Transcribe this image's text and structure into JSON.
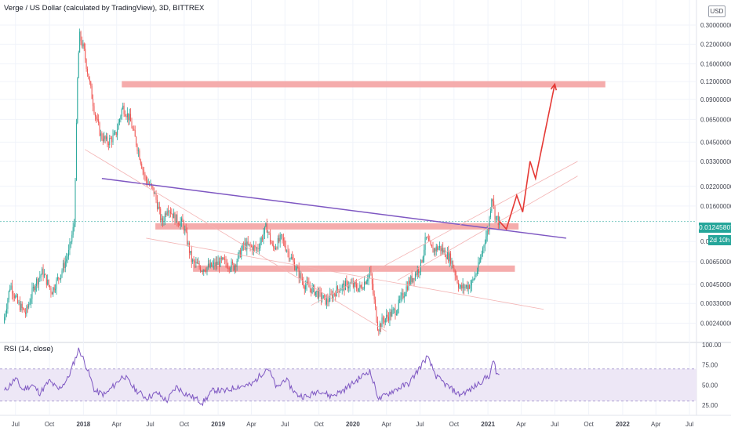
{
  "header": {
    "title": "Verge / US Dollar (calculated by TradingView), 3D, BITTREX",
    "currency_badge": "USD"
  },
  "price_tags": {
    "last_price": "0.01245807",
    "countdown": "2d 10h"
  },
  "rsi_panel": {
    "title": "RSI (14, close)"
  },
  "colors": {
    "up_candle": "#26a69a",
    "down_candle": "#ef5350",
    "resistance_zone": "#f4a3a3",
    "trendline": "#7e57c2",
    "projection_arrow": "#e53935",
    "rsi_line": "#7e57c2",
    "rsi_band": "#ede7f6"
  },
  "chart_data": [
    {
      "type": "candlestick",
      "symbol": "Verge / US Dollar",
      "interval": "3D",
      "exchange": "BITTREX",
      "y_scale": "log",
      "ylim": [
        0.0018,
        0.45
      ],
      "y_ticks": [
        "0.30000000",
        "0.22000000",
        "0.16000000",
        "0.12000000",
        "0.09000000",
        "0.06500000",
        "0.04500000",
        "0.03300000",
        "0.02200000",
        "0.01600000",
        "0.00900000",
        "0.00650000",
        "0.00450000",
        "0.00330000",
        "0.00240000"
      ],
      "x_ticks": [
        "Jul",
        "Oct",
        "2018",
        "Apr",
        "Jul",
        "Oct",
        "2019",
        "Apr",
        "Jul",
        "Oct",
        "2020",
        "Apr",
        "Jul",
        "Oct",
        "2021",
        "Apr",
        "Jul",
        "Oct",
        "2022",
        "Apr",
        "Jul"
      ],
      "last_price": 0.01245807,
      "price_path": [
        [
          "2017-06-01",
          0.0024
        ],
        [
          "2017-06-20",
          0.0045
        ],
        [
          "2017-07-10",
          0.0033
        ],
        [
          "2017-08-01",
          0.0028
        ],
        [
          "2017-08-25",
          0.0045
        ],
        [
          "2017-09-15",
          0.0055
        ],
        [
          "2017-10-10",
          0.004
        ],
        [
          "2017-11-05",
          0.0055
        ],
        [
          "2017-11-25",
          0.0075
        ],
        [
          "2017-12-10",
          0.012
        ],
        [
          "2017-12-20",
          0.16
        ],
        [
          "2017-12-25",
          0.25
        ],
        [
          "2018-01-05",
          0.2
        ],
        [
          "2018-01-20",
          0.12
        ],
        [
          "2018-02-05",
          0.07
        ],
        [
          "2018-02-20",
          0.05
        ],
        [
          "2018-03-10",
          0.045
        ],
        [
          "2018-04-01",
          0.05
        ],
        [
          "2018-04-20",
          0.08
        ],
        [
          "2018-05-10",
          0.065
        ],
        [
          "2018-06-01",
          0.04
        ],
        [
          "2018-06-20",
          0.025
        ],
        [
          "2018-07-15",
          0.02
        ],
        [
          "2018-08-05",
          0.012
        ],
        [
          "2018-08-20",
          0.016
        ],
        [
          "2018-09-10",
          0.013
        ],
        [
          "2018-10-01",
          0.012
        ],
        [
          "2018-10-25",
          0.0065
        ],
        [
          "2018-11-20",
          0.0058
        ],
        [
          "2018-12-15",
          0.006
        ],
        [
          "2019-01-15",
          0.0065
        ],
        [
          "2019-02-15",
          0.006
        ],
        [
          "2019-03-15",
          0.0085
        ],
        [
          "2019-04-20",
          0.008
        ],
        [
          "2019-05-15",
          0.0115
        ],
        [
          "2019-06-01",
          0.008
        ],
        [
          "2019-06-25",
          0.0095
        ],
        [
          "2019-07-25",
          0.0065
        ],
        [
          "2019-08-25",
          0.0045
        ],
        [
          "2019-09-25",
          0.004
        ],
        [
          "2019-10-25",
          0.0034
        ],
        [
          "2019-11-25",
          0.0042
        ],
        [
          "2019-12-25",
          0.0045
        ],
        [
          "2020-01-25",
          0.0042
        ],
        [
          "2020-02-20",
          0.0055
        ],
        [
          "2020-03-12",
          0.0022
        ],
        [
          "2020-03-25",
          0.0025
        ],
        [
          "2020-05-01",
          0.003
        ],
        [
          "2020-06-01",
          0.0045
        ],
        [
          "2020-07-05",
          0.006
        ],
        [
          "2020-07-20",
          0.0095
        ],
        [
          "2020-08-05",
          0.0078
        ],
        [
          "2020-08-25",
          0.0082
        ],
        [
          "2020-09-25",
          0.0068
        ],
        [
          "2020-10-20",
          0.0042
        ],
        [
          "2020-11-20",
          0.0045
        ],
        [
          "2020-12-10",
          0.006
        ],
        [
          "2020-12-25",
          0.009
        ],
        [
          "2021-01-05",
          0.011
        ],
        [
          "2021-01-15",
          0.02
        ],
        [
          "2021-01-22",
          0.014
        ],
        [
          "2021-02-01",
          0.0125
        ]
      ],
      "projection_path": [
        [
          "2021-02-01",
          0.0125
        ],
        [
          "2021-02-20",
          0.011
        ],
        [
          "2021-03-20",
          0.019
        ],
        [
          "2021-04-05",
          0.0145
        ],
        [
          "2021-04-25",
          0.033
        ],
        [
          "2021-05-10",
          0.025
        ],
        [
          "2021-07-01",
          0.115
        ]
      ],
      "resistance_zones": [
        {
          "from": "2018-04-15",
          "to": "2021-11-15",
          "price": 0.115
        },
        {
          "from": "2018-07-15",
          "to": "2021-03-25",
          "price": 0.0115
        },
        {
          "from": "2018-10-25",
          "to": "2021-03-15",
          "price": 0.0058
        }
      ],
      "trendlines": [
        {
          "style": "main",
          "points": [
            [
              "2018-02-20",
              0.025
            ],
            [
              "2021-08-01",
              0.0095
            ]
          ]
        },
        {
          "style": "thin",
          "points": [
            [
              "2018-01-05",
              0.04
            ],
            [
              "2020-04-01",
              0.0021
            ]
          ]
        },
        {
          "style": "thin",
          "points": [
            [
              "2018-06-20",
              0.0095
            ],
            [
              "2021-06-01",
              0.003
            ]
          ]
        },
        {
          "style": "thin",
          "points": [
            [
              "2019-09-10",
              0.0032
            ],
            [
              "2021-09-01",
              0.033
            ]
          ]
        },
        {
          "style": "thin",
          "points": [
            [
              "2020-05-01",
              0.0048
            ],
            [
              "2021-09-01",
              0.026
            ]
          ]
        }
      ]
    },
    {
      "type": "line",
      "name": "RSI (14, close)",
      "ylim": [
        20,
        100
      ],
      "y_ticks": [
        "100.00",
        "75.00",
        "50.00",
        "25.00"
      ],
      "band": [
        30,
        70
      ],
      "values": [
        [
          "2017-06-01",
          42
        ],
        [
          "2017-07-01",
          58
        ],
        [
          "2017-07-20",
          44
        ],
        [
          "2017-08-15",
          50
        ],
        [
          "2017-09-05",
          40
        ],
        [
          "2017-10-01",
          55
        ],
        [
          "2017-10-25",
          44
        ],
        [
          "2017-11-20",
          58
        ],
        [
          "2017-12-20",
          95
        ],
        [
          "2018-01-10",
          72
        ],
        [
          "2018-02-01",
          42
        ],
        [
          "2018-03-01",
          38
        ],
        [
          "2018-04-20",
          62
        ],
        [
          "2018-05-20",
          45
        ],
        [
          "2018-06-20",
          34
        ],
        [
          "2018-07-20",
          40
        ],
        [
          "2018-08-15",
          30
        ],
        [
          "2018-09-10",
          48
        ],
        [
          "2018-10-01",
          40
        ],
        [
          "2018-11-01",
          33
        ],
        [
          "2018-11-20",
          28
        ],
        [
          "2018-12-20",
          44
        ],
        [
          "2019-01-20",
          42
        ],
        [
          "2019-02-20",
          48
        ],
        [
          "2019-04-01",
          50
        ],
        [
          "2019-05-15",
          72
        ],
        [
          "2019-06-10",
          45
        ],
        [
          "2019-07-01",
          58
        ],
        [
          "2019-08-01",
          38
        ],
        [
          "2019-09-01",
          35
        ],
        [
          "2019-10-01",
          44
        ],
        [
          "2019-11-01",
          36
        ],
        [
          "2019-12-01",
          42
        ],
        [
          "2020-01-01",
          52
        ],
        [
          "2020-02-15",
          68
        ],
        [
          "2020-03-12",
          32
        ],
        [
          "2020-04-15",
          42
        ],
        [
          "2020-06-01",
          52
        ],
        [
          "2020-07-20",
          85
        ],
        [
          "2020-08-15",
          60
        ],
        [
          "2020-09-15",
          48
        ],
        [
          "2020-10-15",
          38
        ],
        [
          "2020-11-15",
          44
        ],
        [
          "2020-12-15",
          55
        ],
        [
          "2021-01-05",
          62
        ],
        [
          "2021-01-18",
          82
        ],
        [
          "2021-01-25",
          60
        ],
        [
          "2021-02-01",
          64
        ]
      ]
    }
  ]
}
